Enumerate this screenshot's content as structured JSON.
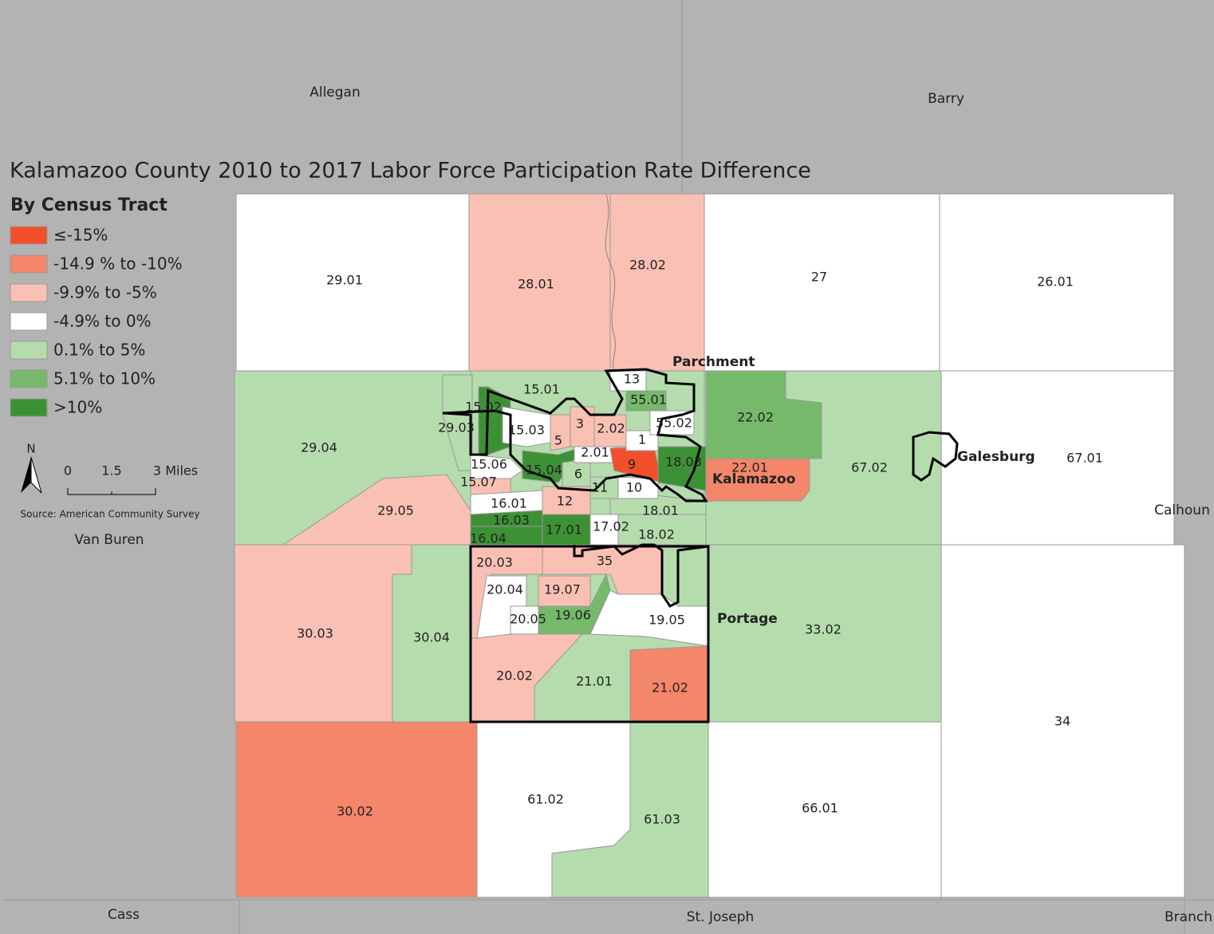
{
  "title": "Kalamazoo County 2010 to 2017  Labor Force Participation Rate Difference",
  "legend": {
    "title": "By Census Tract",
    "items": [
      {
        "label": "≤-15%",
        "color": "#f24f2c"
      },
      {
        "label": "-14.9 % to -10%",
        "color": "#f4866a"
      },
      {
        "label": "-9.9% to -5%",
        "color": "#fbc0b4"
      },
      {
        "label": "-4.9% to 0%",
        "color": "#ffffff"
      },
      {
        "label": "0.1% to 5%",
        "color": "#b5dcad"
      },
      {
        "label": "5.1% to 10%",
        "color": "#76b96b"
      },
      {
        "label": ">10%",
        "color": "#3d9135"
      }
    ]
  },
  "north": "N",
  "scale": [
    "0",
    "1.5",
    "3 Miles"
  ],
  "source": "Source: American Community Survey",
  "counties": [
    "Allegan",
    "Barry",
    "Calhoun",
    "Van Buren",
    "Cass",
    "St. Joseph",
    "Branch"
  ],
  "places": [
    "Parchment",
    "Kalamazoo",
    "Galesburg",
    "Portage"
  ],
  "tracts": [
    {
      "label": "29.01",
      "category": 3
    },
    {
      "label": "28.01",
      "category": 2
    },
    {
      "label": "28.02",
      "category": 2
    },
    {
      "label": "27",
      "category": 3
    },
    {
      "label": "26.01",
      "category": 3
    },
    {
      "label": "29.04",
      "category": 4
    },
    {
      "label": "29.05",
      "category": 2
    },
    {
      "label": "67.02",
      "category": 4
    },
    {
      "label": "22.02",
      "category": 5
    },
    {
      "label": "22.01",
      "category": 1
    },
    {
      "label": "67.01",
      "category": 3
    },
    {
      "label": "30.03",
      "category": 2
    },
    {
      "label": "30.04",
      "category": 4
    },
    {
      "label": "30.02",
      "category": 1
    },
    {
      "label": "61.02",
      "category": 3
    },
    {
      "label": "61.03",
      "category": 4
    },
    {
      "label": "66.01",
      "category": 3
    },
    {
      "label": "34",
      "category": 3
    },
    {
      "label": "33.02",
      "category": 4
    },
    {
      "label": "21.01",
      "category": 4
    },
    {
      "label": "20.02",
      "category": 2
    },
    {
      "label": "21.02",
      "category": 1
    },
    {
      "label": "19.05",
      "category": 3
    },
    {
      "label": "20.03",
      "category": 2
    },
    {
      "label": "20.04",
      "category": 3
    },
    {
      "label": "19.07",
      "category": 2
    },
    {
      "label": "19.06",
      "category": 5
    },
    {
      "label": "20.05",
      "category": 3
    },
    {
      "label": "35",
      "category": 2
    },
    {
      "label": "15.01",
      "category": 4
    },
    {
      "label": "29.03",
      "category": 4
    },
    {
      "label": "15.02",
      "category": 6
    },
    {
      "label": "15.03",
      "category": 3
    },
    {
      "label": "15.06",
      "category": 3
    },
    {
      "label": "15.07",
      "category": 2
    },
    {
      "label": "15.04",
      "category": 6
    },
    {
      "label": "16.01",
      "category": 3
    },
    {
      "label": "16.03",
      "category": 6
    },
    {
      "label": "16.04",
      "category": 6
    },
    {
      "label": "17.01",
      "category": 6
    },
    {
      "label": "12",
      "category": 2
    },
    {
      "label": "17.02",
      "category": 3
    },
    {
      "label": "18.02",
      "category": 4
    },
    {
      "label": "18.01",
      "category": 4
    },
    {
      "label": "10",
      "category": 3
    },
    {
      "label": "11",
      "category": 4
    },
    {
      "label": "6",
      "category": 4
    },
    {
      "label": "2.01",
      "category": 3
    },
    {
      "label": "9",
      "category": 0
    },
    {
      "label": "5",
      "category": 2
    },
    {
      "label": "3",
      "category": 2
    },
    {
      "label": "2.02",
      "category": 2
    },
    {
      "label": "1",
      "category": 3
    },
    {
      "label": "13",
      "category": 3
    },
    {
      "label": "55.01",
      "category": 5
    },
    {
      "label": "55.02",
      "category": 3
    },
    {
      "label": "18.03",
      "category": 6
    }
  ]
}
